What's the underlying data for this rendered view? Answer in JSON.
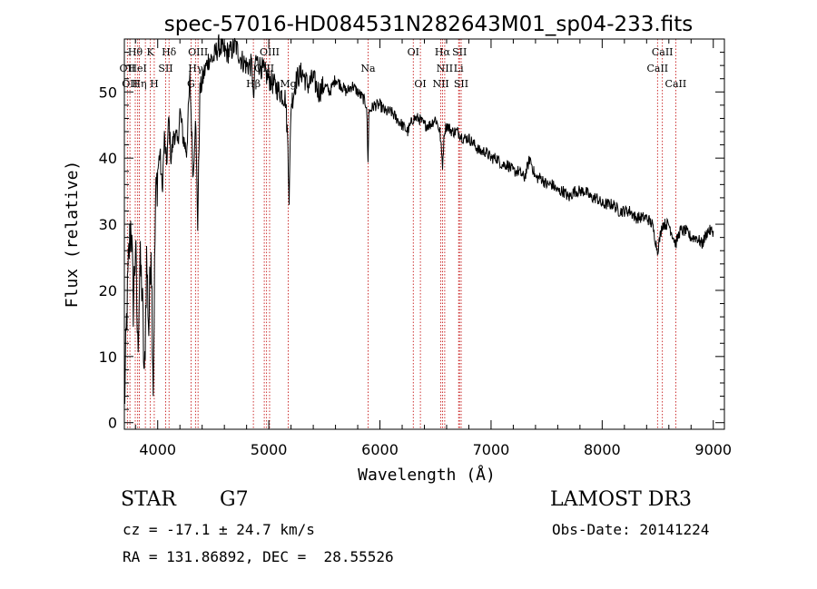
{
  "chart_data": {
    "type": "line",
    "title": "spec-57016-HD084531N282643M01_sp04-233.fits",
    "xlabel": "Wavelength (Å)",
    "ylabel": "Flux (relative)",
    "xlim": [
      3700,
      9100
    ],
    "ylim": [
      -1,
      58
    ],
    "xticks": [
      4000,
      5000,
      6000,
      7000,
      8000,
      9000
    ],
    "xtick_labels": [
      "4000",
      "5000",
      "6000",
      "7000",
      "8000",
      "9000"
    ],
    "yticks": [
      0,
      10,
      20,
      30,
      40,
      50
    ],
    "ytick_labels": [
      "0",
      "10",
      "20",
      "30",
      "40",
      "50"
    ],
    "grid": false,
    "legend": "none",
    "series": [
      {
        "name": "spectrum",
        "x": [
          3700,
          3720,
          3740,
          3760,
          3780,
          3800,
          3820,
          3840,
          3860,
          3880,
          3900,
          3920,
          3940,
          3960,
          3980,
          4000,
          4020,
          4040,
          4060,
          4080,
          4100,
          4120,
          4150,
          4180,
          4200,
          4230,
          4260,
          4290,
          4320,
          4340,
          4360,
          4380,
          4420,
          4460,
          4500,
          4550,
          4600,
          4650,
          4700,
          4750,
          4800,
          4850,
          4861,
          4880,
          4920,
          4960,
          5000,
          5050,
          5100,
          5150,
          5172,
          5183,
          5200,
          5250,
          5300,
          5350,
          5400,
          5450,
          5500,
          5550,
          5600,
          5650,
          5700,
          5750,
          5800,
          5850,
          5880,
          5893,
          5900,
          5950,
          6000,
          6050,
          6100,
          6150,
          6200,
          6250,
          6300,
          6350,
          6400,
          6450,
          6500,
          6540,
          6563,
          6580,
          6600,
          6650,
          6700,
          6750,
          6800,
          6850,
          6900,
          6950,
          7000,
          7050,
          7100,
          7150,
          7200,
          7250,
          7300,
          7350,
          7400,
          7450,
          7500,
          7550,
          7600,
          7650,
          7700,
          7750,
          7800,
          7850,
          7900,
          7950,
          8000,
          8050,
          8100,
          8150,
          8200,
          8250,
          8300,
          8350,
          8400,
          8450,
          8498,
          8542,
          8600,
          8662,
          8700,
          8750,
          8800,
          8850,
          8900,
          8950,
          9000
        ],
        "y": [
          2,
          15,
          25,
          31,
          18,
          27,
          11,
          24,
          20,
          5,
          25,
          14,
          28,
          6,
          33,
          38,
          41,
          35,
          43,
          39,
          46,
          40,
          44,
          42,
          47,
          43,
          41,
          52,
          37,
          47,
          30,
          50,
          53,
          55,
          55,
          57,
          56,
          56,
          57,
          55,
          54,
          54,
          48,
          55,
          54,
          53,
          52,
          51,
          50,
          49,
          42,
          34,
          48,
          52,
          53,
          51,
          52,
          50,
          51,
          50,
          52,
          51,
          50,
          51,
          50,
          49,
          48,
          39,
          47,
          48,
          48,
          47,
          47,
          46,
          45,
          44,
          46,
          46,
          45,
          45,
          46,
          44,
          39,
          44,
          45,
          44,
          44,
          43,
          43,
          42,
          41,
          41,
          40,
          40,
          39,
          39,
          38,
          38,
          37,
          40,
          37,
          37,
          36,
          36,
          35,
          35,
          34,
          35,
          35,
          35,
          34,
          34,
          33,
          33,
          33,
          32,
          32,
          32,
          31,
          31,
          31,
          30,
          26,
          30,
          30,
          27,
          29,
          29,
          28,
          28,
          27,
          29,
          29
        ]
      }
    ],
    "line_markers": [
      {
        "wavelength": 3727,
        "label": "OII"
      },
      {
        "wavelength": 3750,
        "label": "OII"
      },
      {
        "wavelength": 3798,
        "label": "Hθ"
      },
      {
        "wavelength": 3820,
        "label": "HeI"
      },
      {
        "wavelength": 3835,
        "label": "Hη"
      },
      {
        "wavelength": 3889,
        "label": "HeI"
      },
      {
        "wavelength": 3934,
        "label": "K"
      },
      {
        "wavelength": 3969,
        "label": "H"
      },
      {
        "wavelength": 4072,
        "label": "SII"
      },
      {
        "wavelength": 4102,
        "label": "Hδ"
      },
      {
        "wavelength": 4300,
        "label": "G"
      },
      {
        "wavelength": 4340,
        "label": "Hγ"
      },
      {
        "wavelength": 4363,
        "label": "OIII"
      },
      {
        "wavelength": 4861,
        "label": "Hβ"
      },
      {
        "wavelength": 4959,
        "label": "OIII"
      },
      {
        "wavelength": 4980,
        "label": "OIII"
      },
      {
        "wavelength": 5007,
        "label": "OIII"
      },
      {
        "wavelength": 5175,
        "label": "Mg"
      },
      {
        "wavelength": 5893,
        "label": "Na"
      },
      {
        "wavelength": 6300,
        "label": "OI"
      },
      {
        "wavelength": 6364,
        "label": "OI"
      },
      {
        "wavelength": 6548,
        "label": "NII"
      },
      {
        "wavelength": 6563,
        "label": "Hα"
      },
      {
        "wavelength": 6583,
        "label": "NII"
      },
      {
        "wavelength": 6708,
        "label": "Li"
      },
      {
        "wavelength": 6716,
        "label": "SII"
      },
      {
        "wavelength": 6731,
        "label": "SII"
      },
      {
        "wavelength": 8498,
        "label": "CaII"
      },
      {
        "wavelength": 8542,
        "label": "CaII"
      },
      {
        "wavelength": 8662,
        "label": "CaII"
      }
    ],
    "annotations": [
      {
        "text": "Hθ",
        "wavelength": 3798,
        "row": 0
      },
      {
        "text": "K",
        "wavelength": 3934,
        "row": 0
      },
      {
        "text": "Hδ",
        "wavelength": 4102,
        "row": 0
      },
      {
        "text": "OIII",
        "wavelength": 4363,
        "row": 0
      },
      {
        "text": "OIII",
        "wavelength": 5007,
        "row": 0
      },
      {
        "text": "OI",
        "wavelength": 6300,
        "row": 0
      },
      {
        "text": "Hα",
        "wavelength": 6563,
        "row": 0
      },
      {
        "text": "SII",
        "wavelength": 6716,
        "row": 0
      },
      {
        "text": "CaII",
        "wavelength": 8542,
        "row": 0
      },
      {
        "text": "OII",
        "wavelength": 3727,
        "row": 1
      },
      {
        "text": "HeI",
        "wavelength": 3820,
        "row": 1
      },
      {
        "text": "SII",
        "wavelength": 4072,
        "row": 1
      },
      {
        "text": "Hγ",
        "wavelength": 4340,
        "row": 1
      },
      {
        "text": "OIII",
        "wavelength": 4959,
        "row": 1
      },
      {
        "text": "Na",
        "wavelength": 5893,
        "row": 1
      },
      {
        "text": "NII",
        "wavelength": 6583,
        "row": 1
      },
      {
        "text": "Li",
        "wavelength": 6708,
        "row": 1
      },
      {
        "text": "CaII",
        "wavelength": 8498,
        "row": 1
      },
      {
        "text": "OII",
        "wavelength": 3750,
        "row": 2
      },
      {
        "text": "Hη",
        "wavelength": 3835,
        "row": 2
      },
      {
        "text": "H",
        "wavelength": 3969,
        "row": 2
      },
      {
        "text": "G",
        "wavelength": 4300,
        "row": 2
      },
      {
        "text": "Hβ",
        "wavelength": 4861,
        "row": 2
      },
      {
        "text": "Mg",
        "wavelength": 5175,
        "row": 2
      },
      {
        "text": "OI",
        "wavelength": 6364,
        "row": 2
      },
      {
        "text": "NII",
        "wavelength": 6548,
        "row": 2
      },
      {
        "text": "SII",
        "wavelength": 6731,
        "row": 2
      },
      {
        "text": "CaII",
        "wavelength": 8662,
        "row": 2
      }
    ]
  },
  "colors": {
    "spectrum": "#000000",
    "markers": "#c00000",
    "axes": "#000000"
  },
  "info": {
    "object_type": "STAR",
    "subclass": "G7",
    "survey": "LAMOST DR3",
    "redshift": "cz = -17.1 ± 24.7 km/s",
    "obs_date": "Obs-Date: 20141224",
    "coords": "RA = 131.86892, DEC =  28.55526"
  }
}
